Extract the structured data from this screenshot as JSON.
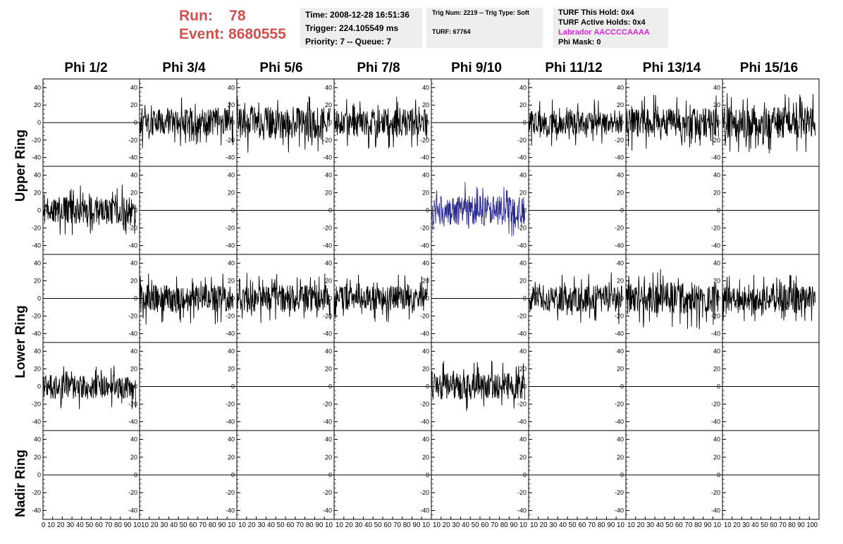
{
  "run_label": "Run:",
  "run_value": "78",
  "event_label": "Event:",
  "event_value": "8680555",
  "time_line": "Time: 2008-12-28 16:51:36",
  "trigger_line": "Trigger: 224.105549 ms",
  "priority_line": "Priority: 7 -- Queue: 7",
  "trig_num_line": "Trig Num: 2219 -- Trig Type: Soft",
  "turf_line": "TURF: 67764",
  "turf_hold_line": "TURF This Hold: 0x4",
  "turf_active_line": "TURF Active Holds: 0x4",
  "labrador_line": "Labrador AACCCCAAAA",
  "phi_mask_line": "Phi Mask: 0",
  "columns": [
    "Phi 1/2",
    "Phi 3/4",
    "Phi 5/6",
    "Phi 7/8",
    "Phi 9/10",
    "Phi 11/12",
    "Phi 13/14",
    "Phi 15/16"
  ],
  "rings": [
    "Upper Ring",
    "Lower Ring",
    "Nadir Ring"
  ],
  "colors": {
    "trace": "#000000",
    "highlight_trace": "#2a2a90",
    "run_text": "#d05050",
    "labrador": "#e020e0",
    "info_bg": "#eeeeee"
  },
  "chart_data": {
    "type": "line",
    "title": "",
    "x_range": [
      0,
      100
    ],
    "y_range": [
      -50,
      50
    ],
    "y_ticks": [
      -40,
      -20,
      0,
      20,
      40
    ],
    "x_ticks": [
      0,
      10,
      20,
      30,
      40,
      50,
      60,
      70,
      80,
      90,
      100
    ],
    "x_tick_labels_row": [
      "0 10 20 30 40 50 60 70 80 90 10",
      "10 20 30 40 50 60 70 80 90 10",
      "10 20 30 40 50 60 70 80 90 10",
      "10 20 30 40 50 60 70 80 90 10",
      "10 20 30 40 50 60 70 80 90 10",
      "10 20 30 40 50 60 70 80 90 10",
      "10 20 30 40 50 60 70 80 90 10",
      "10 20 30 40 50 60 70 80 90 100"
    ],
    "panel_rows": [
      {
        "ring": "Upper Ring",
        "sub": 1
      },
      {
        "ring": "Upper Ring",
        "sub": 2
      },
      {
        "ring": "Lower Ring",
        "sub": 1
      },
      {
        "ring": "Lower Ring",
        "sub": 2
      },
      {
        "ring": "Nadir Ring",
        "sub": 1
      }
    ],
    "active_panels": [
      {
        "row": 0,
        "col": 1,
        "x_start": 0,
        "x_end": 96,
        "amplitude": 22,
        "seed": 3
      },
      {
        "row": 0,
        "col": 2,
        "x_start": 0,
        "x_end": 96,
        "amplitude": 26,
        "seed": 5
      },
      {
        "row": 0,
        "col": 3,
        "x_start": 0,
        "x_end": 96,
        "amplitude": 22,
        "seed": 7
      },
      {
        "row": 0,
        "col": 5,
        "x_start": 0,
        "x_end": 96,
        "amplitude": 20,
        "seed": 11
      },
      {
        "row": 0,
        "col": 6,
        "x_start": 0,
        "x_end": 96,
        "amplitude": 24,
        "seed": 13
      },
      {
        "row": 0,
        "col": 7,
        "x_start": 0,
        "x_end": 96,
        "amplitude": 26,
        "seed": 17
      },
      {
        "row": 1,
        "col": 0,
        "x_start": 0,
        "x_end": 96,
        "amplitude": 22,
        "seed": 19
      },
      {
        "row": 1,
        "col": 4,
        "x_start": 0,
        "x_end": 96,
        "amplitude": 24,
        "seed": 23,
        "highlight": true
      },
      {
        "row": 2,
        "col": 1,
        "x_start": 0,
        "x_end": 96,
        "amplitude": 22,
        "seed": 29
      },
      {
        "row": 2,
        "col": 2,
        "x_start": 0,
        "x_end": 96,
        "amplitude": 22,
        "seed": 31
      },
      {
        "row": 2,
        "col": 3,
        "x_start": 0,
        "x_end": 96,
        "amplitude": 20,
        "seed": 37
      },
      {
        "row": 2,
        "col": 5,
        "x_start": 0,
        "x_end": 96,
        "amplitude": 22,
        "seed": 41
      },
      {
        "row": 2,
        "col": 6,
        "x_start": 0,
        "x_end": 96,
        "amplitude": 26,
        "seed": 43
      },
      {
        "row": 2,
        "col": 7,
        "x_start": 0,
        "x_end": 96,
        "amplitude": 20,
        "seed": 47
      },
      {
        "row": 3,
        "col": 0,
        "x_start": 0,
        "x_end": 96,
        "amplitude": 20,
        "seed": 53
      },
      {
        "row": 3,
        "col": 4,
        "x_start": 0,
        "x_end": 96,
        "amplitude": 22,
        "seed": 59
      }
    ],
    "grid": false
  }
}
